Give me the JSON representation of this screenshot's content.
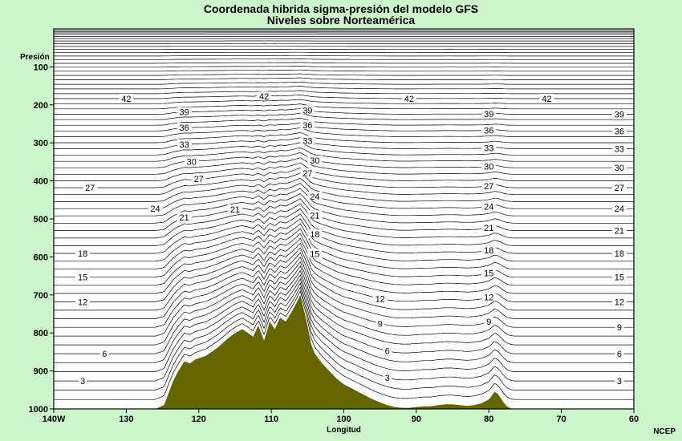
{
  "title": "Coordenada hibrida sigma-presión del modelo GFS",
  "subtitle": "Niveles sobre Norteamérica",
  "credit": "NCEP",
  "colors": {
    "background": "#cdf5cc",
    "plot_area": "#ffffff",
    "terrain": "#666600",
    "contour": "#000000"
  },
  "chart_data": {
    "type": "line",
    "xlabel": "Longitud",
    "ylabel": "Presión",
    "x_ticks": [
      "140W",
      "130",
      "120",
      "110",
      "100",
      "90",
      "80",
      "70",
      "60"
    ],
    "x_tick_values": [
      -140,
      -130,
      -120,
      -110,
      -100,
      -90,
      -80,
      -70,
      -60
    ],
    "xlim": [
      -140,
      -60
    ],
    "y_ticks": [
      100,
      200,
      300,
      400,
      500,
      600,
      700,
      800,
      900,
      1000
    ],
    "ylim": [
      0,
      1000
    ],
    "y_inverted": true,
    "levels_total": 64,
    "level_labels": [
      {
        "level": 42,
        "x": [
          -130,
          -111,
          -91,
          -72
        ]
      },
      {
        "level": 39,
        "x": [
          -122,
          -105,
          -80,
          -62
        ]
      },
      {
        "level": 36,
        "x": [
          -122,
          -105,
          -80,
          -62
        ]
      },
      {
        "level": 33,
        "x": [
          -122,
          -105,
          -80,
          -62
        ]
      },
      {
        "level": 30,
        "x": [
          -121,
          -104,
          -80,
          -62
        ]
      },
      {
        "level": 27,
        "x": [
          -135,
          -120,
          -105,
          -80,
          -62
        ]
      },
      {
        "level": 24,
        "x": [
          -126,
          -104,
          -80,
          -62
        ]
      },
      {
        "level": 21,
        "x": [
          -122,
          -115,
          -104,
          -80,
          -62
        ]
      },
      {
        "level": 18,
        "x": [
          -136,
          -104,
          -80,
          -62
        ]
      },
      {
        "level": 15,
        "x": [
          -136,
          -104,
          -80,
          -62
        ]
      },
      {
        "level": 12,
        "x": [
          -136,
          -95,
          -80,
          -62
        ]
      },
      {
        "level": 9,
        "x": [
          -95,
          -80,
          -62
        ]
      },
      {
        "level": 6,
        "x": [
          -133,
          -94,
          -62
        ]
      },
      {
        "level": 3,
        "x": [
          -136,
          -94,
          -62
        ]
      }
    ],
    "terrain_surface_pressure": {
      "x": [
        -140,
        -126,
        -124.8,
        -124.2,
        -123.5,
        -122.8,
        -122,
        -121.2,
        -120.5,
        -119,
        -117.5,
        -116,
        -115,
        -114,
        -113.2,
        -112.5,
        -111.8,
        -111,
        -110.2,
        -109.5,
        -108.8,
        -108,
        -107.2,
        -106.5,
        -106,
        -105.5,
        -105,
        -104.5,
        -104,
        -103,
        -102,
        -101,
        -100,
        -99,
        -98,
        -97,
        -96,
        -95,
        -94,
        -93,
        -92,
        -91,
        -90,
        -89,
        -88,
        -87,
        -86,
        -85,
        -84,
        -83,
        -82,
        -81,
        -80,
        -79.6,
        -79.2,
        -78.8,
        -78.4,
        -78,
        -77.5,
        -77,
        -76.5,
        -76,
        -60
      ],
      "p": [
        1000,
        1000,
        990,
        960,
        925,
        900,
        875,
        880,
        870,
        860,
        840,
        815,
        800,
        790,
        800,
        810,
        780,
        820,
        770,
        790,
        760,
        770,
        745,
        720,
        700,
        740,
        780,
        830,
        855,
        880,
        900,
        920,
        935,
        945,
        955,
        965,
        975,
        983,
        990,
        995,
        997,
        997,
        995,
        993,
        993,
        990,
        988,
        988,
        990,
        992,
        990,
        985,
        975,
        965,
        955,
        960,
        970,
        982,
        993,
        998,
        1000,
        1000,
        1000
      ]
    }
  }
}
